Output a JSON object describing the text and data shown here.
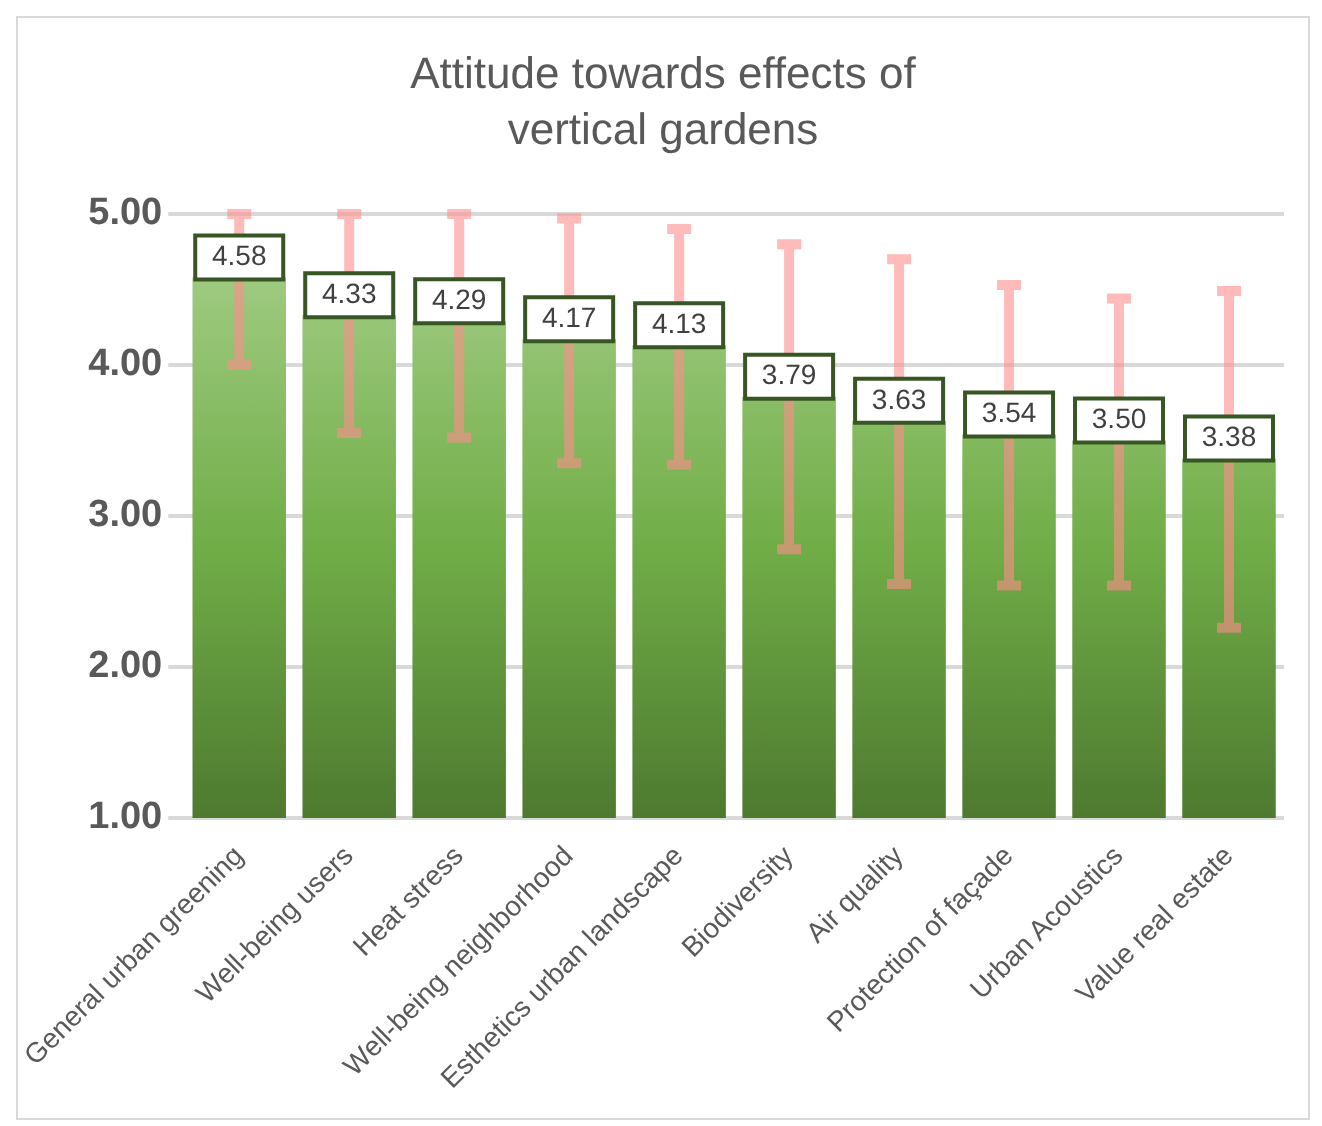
{
  "chart_data": {
    "type": "bar",
    "title": "Attitude towards effects of vertical gardens",
    "categories": [
      "General urban greening",
      "Well-being users",
      "Heat stress",
      "Well-being neighborhood",
      "Esthetics urban landscape",
      "Biodiversity",
      "Air quality",
      "Protection of façade",
      "Urban Acoustics",
      "Value real estate"
    ],
    "values": [
      4.58,
      4.33,
      4.29,
      4.17,
      4.13,
      3.79,
      3.63,
      3.54,
      3.5,
      3.38
    ],
    "errors": [
      [
        4.0,
        5.0
      ],
      [
        3.55,
        5.0
      ],
      [
        3.52,
        5.0
      ],
      [
        3.35,
        4.97
      ],
      [
        3.34,
        4.9
      ],
      [
        2.78,
        4.8
      ],
      [
        2.55,
        4.7
      ],
      [
        2.54,
        4.53
      ],
      [
        2.54,
        4.44
      ],
      [
        2.26,
        4.49
      ]
    ],
    "color": "#70ad47",
    "value_labels": [
      "4.58",
      "4.33",
      "4.29",
      "4.17",
      "4.13",
      "3.79",
      "3.63",
      "3.54",
      "3.50",
      "3.38"
    ],
    "ylim": [
      1,
      5
    ],
    "yticks": [
      {
        "value": 1,
        "label": "1.00"
      },
      {
        "value": 2,
        "label": "2.00"
      },
      {
        "value": 3,
        "label": "3.00"
      },
      {
        "value": 4,
        "label": "4.00"
      },
      {
        "value": 5,
        "label": "5.00"
      }
    ],
    "grid": "y"
  }
}
